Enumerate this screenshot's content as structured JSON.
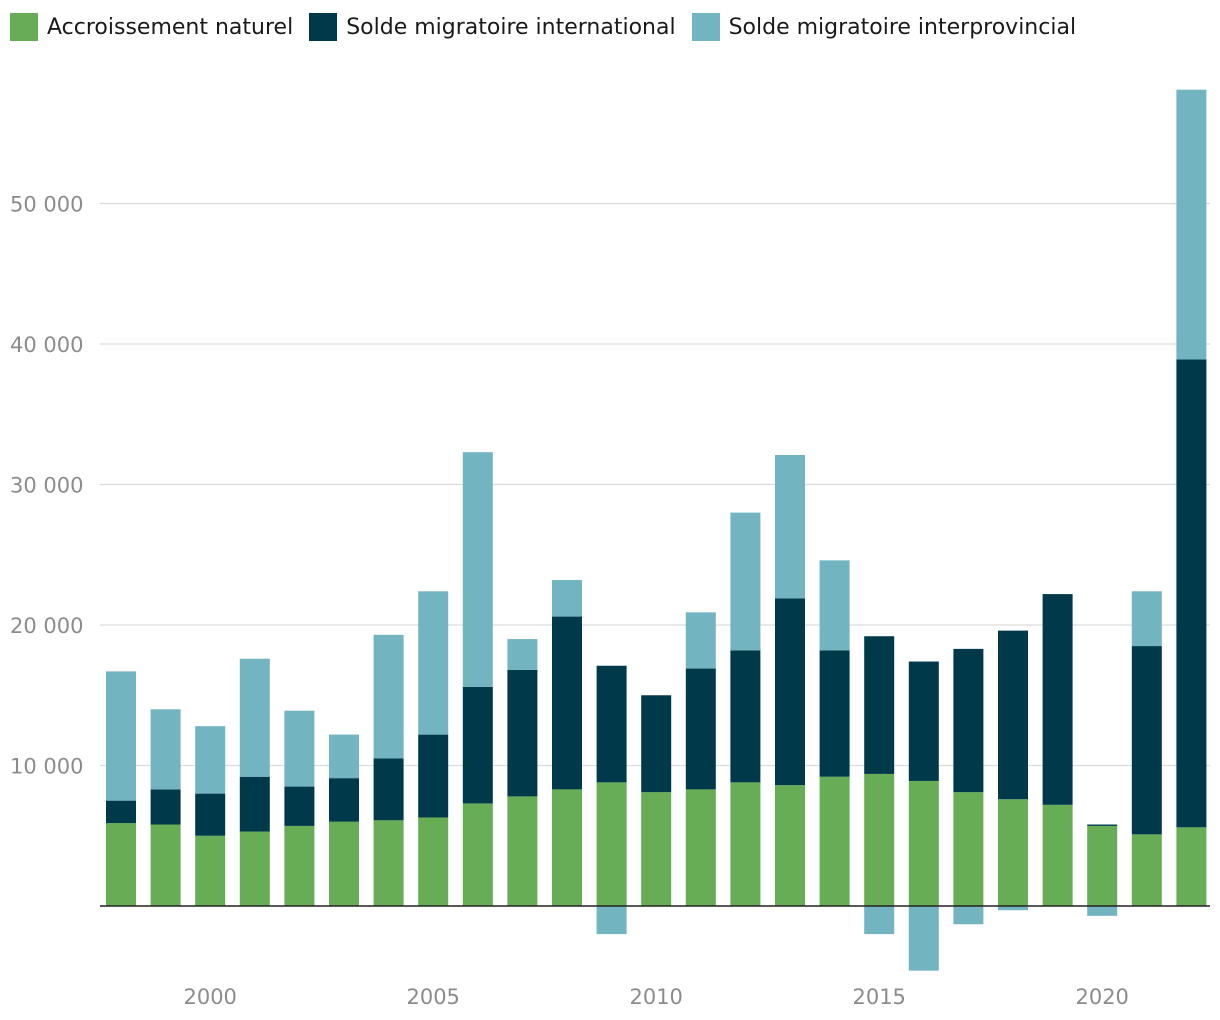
{
  "chart_data": {
    "type": "bar",
    "stacked": true,
    "title": "",
    "xlabel": "",
    "ylabel": "",
    "ylim": [
      -5000,
      58000
    ],
    "y_ticks": [
      10000,
      20000,
      30000,
      40000,
      50000
    ],
    "y_tick_labels": [
      "10 000",
      "20 000",
      "30 000",
      "40 000",
      "50 000"
    ],
    "x_ticks": [
      2000,
      2005,
      2010,
      2015,
      2020
    ],
    "x_tick_labels": [
      "2000",
      "2005",
      "2010",
      "2015",
      "2020"
    ],
    "grid": true,
    "legend_position": "top-left",
    "categories": [
      1998,
      1999,
      2000,
      2001,
      2002,
      2003,
      2004,
      2005,
      2006,
      2007,
      2008,
      2009,
      2010,
      2011,
      2012,
      2013,
      2014,
      2015,
      2016,
      2017,
      2018,
      2019,
      2020,
      2021,
      2022
    ],
    "series": [
      {
        "name": "Accroissement naturel",
        "color": "#66ad56",
        "values": [
          5900,
          5800,
          5000,
          5300,
          5700,
          6000,
          6100,
          6300,
          7300,
          7800,
          8300,
          8800,
          8100,
          8300,
          8800,
          8600,
          9200,
          9400,
          8900,
          8100,
          7600,
          7200,
          5700,
          5100,
          5600
        ]
      },
      {
        "name": "Solde migratoire international",
        "color": "#003a4a",
        "values": [
          1600,
          2500,
          3000,
          3900,
          2800,
          3100,
          4400,
          5900,
          8300,
          9000,
          12300,
          8300,
          6900,
          8600,
          9400,
          13300,
          9000,
          9800,
          8500,
          10200,
          12000,
          15000,
          100,
          13400,
          33300
        ]
      },
      {
        "name": "Solde migratoire interprovincial",
        "color": "#73b4c1",
        "values": [
          9200,
          5700,
          4800,
          8400,
          5400,
          3100,
          8800,
          10200,
          16700,
          2200,
          2600,
          -2000,
          0,
          4000,
          9800,
          10200,
          6400,
          -2000,
          -4600,
          -1300,
          -300,
          0,
          -700,
          3900,
          19200
        ]
      }
    ]
  }
}
